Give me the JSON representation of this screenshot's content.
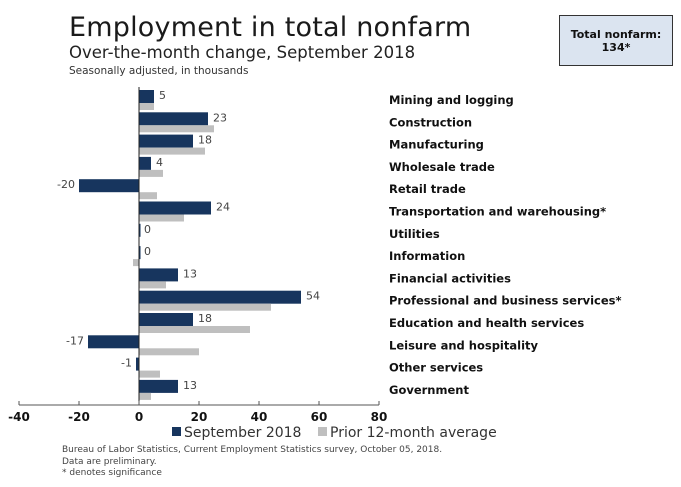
{
  "header": {
    "title": "Employment in total nonfarm",
    "subtitle": "Over-the-month change, September 2018",
    "note": "Seasonally adjusted, in thousands"
  },
  "total_box": {
    "label": "Total nonfarm:",
    "value": "134*"
  },
  "footer": {
    "source": "Bureau of Labor Statistics, Current Employment Statistics survey, October 05, 2018.",
    "preliminary": "Data are preliminary.",
    "significance": "* denotes significance"
  },
  "colors": {
    "september": "#17355e",
    "prior_avg": "#bfbfbf"
  },
  "chart_data": {
    "type": "bar",
    "orientation": "horizontal",
    "title": "Employment in total nonfarm",
    "subtitle": "Over-the-month change, September 2018",
    "xlabel": "",
    "ylabel": "",
    "xlim": [
      -40,
      80
    ],
    "xticks": [
      -40,
      -20,
      0,
      20,
      40,
      60,
      80
    ],
    "grid": false,
    "legend": "bottom",
    "categories": [
      "Mining and logging",
      "Construction",
      "Manufacturing",
      "Wholesale trade",
      "Retail trade",
      "Transportation and warehousing*",
      "Utilities",
      "Information",
      "Financial activities",
      "Professional and business services*",
      "Education and health services",
      "Leisure and hospitality",
      "Other services",
      "Government"
    ],
    "series": [
      {
        "name": "September 2018",
        "values": [
          5,
          23,
          18,
          4,
          -20,
          24,
          0,
          0,
          13,
          54,
          18,
          -17,
          -1,
          13
        ],
        "labels": [
          "5",
          "23",
          "18",
          "4",
          "-20",
          "24",
          "0",
          "0",
          "13",
          "54",
          "18",
          "-17",
          "-1",
          "13"
        ]
      },
      {
        "name": "Prior 12-month average",
        "values": [
          5,
          25,
          22,
          8,
          6,
          15,
          0,
          -2,
          9,
          44,
          37,
          20,
          7,
          4
        ]
      }
    ]
  }
}
